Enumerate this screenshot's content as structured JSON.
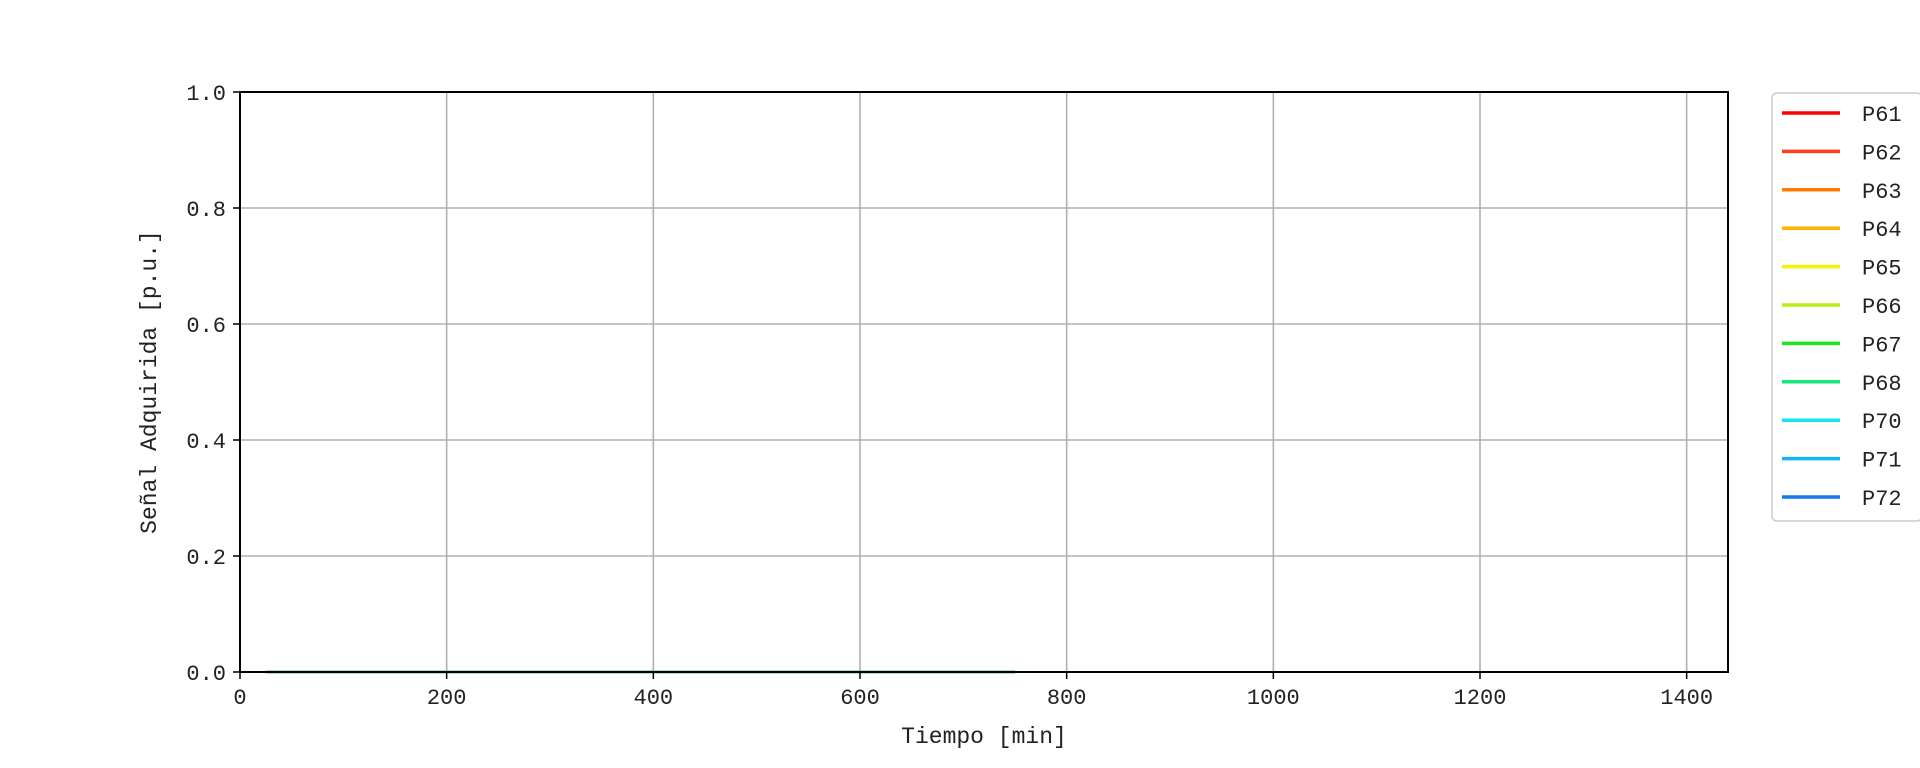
{
  "chart_data": {
    "type": "line",
    "title": "",
    "xlabel": "Tiempo [min]",
    "ylabel": "Señal Adquirida [p.u.]",
    "xlim": [
      0,
      1440
    ],
    "ylim": [
      0,
      1.0
    ],
    "xticks": [
      0,
      200,
      400,
      600,
      800,
      1000,
      1200,
      1400
    ],
    "xtick_labels": [
      "0",
      "200",
      "400",
      "600",
      "800",
      "1000",
      "1200",
      "1400"
    ],
    "yticks": [
      0,
      0.2,
      0.4,
      0.6,
      0.8,
      1.0
    ],
    "ytick_labels": [
      "0.0",
      "0.2",
      "0.4",
      "0.6",
      "0.8",
      "1.0"
    ],
    "grid": true,
    "legend": "outside-right-top",
    "series": [
      {
        "name": "P61",
        "color": "#ff0000",
        "x": [
          25,
          750
        ],
        "y": [
          0,
          0
        ]
      },
      {
        "name": "P62",
        "color": "#ff3d1a",
        "x": [
          25,
          750
        ],
        "y": [
          0,
          0
        ]
      },
      {
        "name": "P63",
        "color": "#ff7a00",
        "x": [
          25,
          750
        ],
        "y": [
          0,
          0
        ]
      },
      {
        "name": "P64",
        "color": "#ffb400",
        "x": [
          25,
          750
        ],
        "y": [
          0,
          0
        ]
      },
      {
        "name": "P65",
        "color": "#f2f20a",
        "x": [
          25,
          750
        ],
        "y": [
          0,
          0
        ]
      },
      {
        "name": "P66",
        "color": "#b8ee14",
        "x": [
          25,
          750
        ],
        "y": [
          0,
          0
        ]
      },
      {
        "name": "P67",
        "color": "#1ee61e",
        "x": [
          25,
          750
        ],
        "y": [
          0,
          0
        ]
      },
      {
        "name": "P68",
        "color": "#14e678",
        "x": [
          25,
          750
        ],
        "y": [
          0,
          0
        ]
      },
      {
        "name": "P70",
        "color": "#14e6f0",
        "x": [
          25,
          750
        ],
        "y": [
          0,
          0
        ]
      },
      {
        "name": "P71",
        "color": "#14b4f0",
        "x": [
          25,
          750
        ],
        "y": [
          0,
          0
        ]
      },
      {
        "name": "P72",
        "color": "#1478e6",
        "x": [
          25,
          750
        ],
        "y": [
          0,
          0
        ]
      }
    ]
  }
}
